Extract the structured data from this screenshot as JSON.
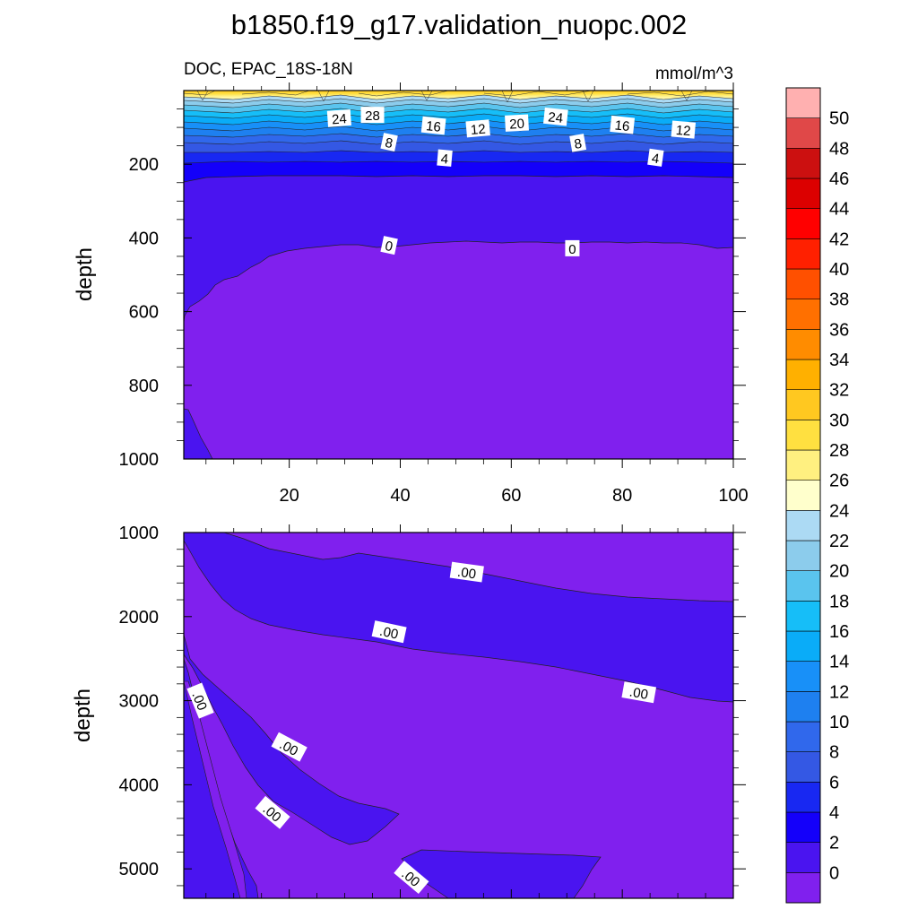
{
  "figure": {
    "title": "b1850.f19_g17.validation_nuopc.002",
    "subtitle_left": "DOC, EPAC_18S-18N",
    "subtitle_right": "mmol/m^3"
  },
  "chart_data": [
    {
      "type": "heatmap",
      "panel": "upper",
      "variable": "DOC",
      "region": "EPAC_18S-18N",
      "units": "mmol/m^3",
      "ylabel": "depth",
      "xlabel": "",
      "xlim": [
        1,
        100
      ],
      "ylim": [
        1000,
        0
      ],
      "x_ticks": [
        20,
        40,
        60,
        80,
        100
      ],
      "y_ticks": [
        200,
        400,
        600,
        800,
        1000
      ],
      "surface_range": [
        24,
        30
      ],
      "contour_labels": [
        {
          "text": "24",
          "x": 29,
          "y": 75
        },
        {
          "text": "28",
          "x": 35,
          "y": 66
        },
        {
          "text": "16",
          "x": 46,
          "y": 95
        },
        {
          "text": "12",
          "x": 54,
          "y": 103
        },
        {
          "text": "20",
          "x": 61,
          "y": 88
        },
        {
          "text": "24",
          "x": 68,
          "y": 71
        },
        {
          "text": "16",
          "x": 80,
          "y": 93
        },
        {
          "text": "12",
          "x": 91,
          "y": 106
        },
        {
          "text": "8",
          "x": 38,
          "y": 140
        },
        {
          "text": "8",
          "x": 72,
          "y": 142
        },
        {
          "text": "4",
          "x": 48,
          "y": 183
        },
        {
          "text": "4",
          "x": 86,
          "y": 182
        },
        {
          "text": "0",
          "x": 38,
          "y": 420
        },
        {
          "text": "0",
          "x": 71,
          "y": 428
        }
      ]
    },
    {
      "type": "heatmap",
      "panel": "lower",
      "variable": "DOC",
      "ylabel": "depth",
      "xlabel": "",
      "xlim": [
        1,
        100
      ],
      "ylim": [
        5350,
        1000
      ],
      "y_ticks": [
        1000,
        2000,
        3000,
        4000,
        5000
      ],
      "contour_labels": [
        {
          "text": ".00",
          "x": 52,
          "y": 1470
        },
        {
          "text": ".00",
          "x": 38,
          "y": 2180
        },
        {
          "text": ".00",
          "x": 83,
          "y": 2900
        },
        {
          "text": ".00",
          "x": 4,
          "y": 3000
        },
        {
          "text": ".00",
          "x": 20,
          "y": 3550
        },
        {
          "text": ".00",
          "x": 17,
          "y": 4330
        },
        {
          "text": ".00",
          "x": 42,
          "y": 5100
        }
      ]
    }
  ],
  "colorbar": {
    "levels": [
      "0",
      "2",
      "4",
      "6",
      "8",
      "10",
      "12",
      "14",
      "16",
      "18",
      "20",
      "22",
      "24",
      "26",
      "28",
      "30",
      "32",
      "34",
      "36",
      "38",
      "40",
      "42",
      "44",
      "46",
      "48",
      "50"
    ],
    "colors": [
      "#8020EE",
      "#4A14F0",
      "#1400FA",
      "#1828F2",
      "#3458E4",
      "#3068EC",
      "#1E80F0",
      "#1890F8",
      "#0AACF8",
      "#16BEF8",
      "#5AC4EE",
      "#8CCCEC",
      "#ACDAF4",
      "#FFFFCC",
      "#FFF080",
      "#FFE040",
      "#FFC820",
      "#FFB000",
      "#FF8C00",
      "#FF7000",
      "#FF5000",
      "#FF2000",
      "#FF0000",
      "#DC0000",
      "#CC1010",
      "#E04848",
      "#FFB0B0"
    ]
  }
}
